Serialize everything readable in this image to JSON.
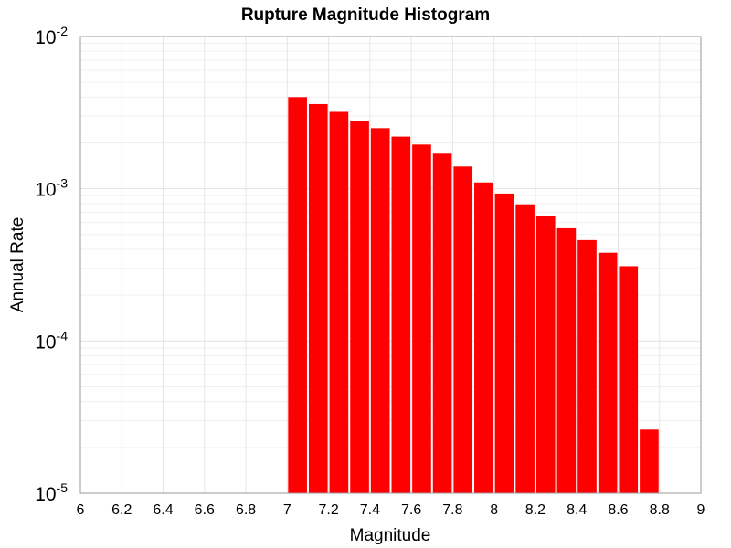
{
  "chart_data": {
    "type": "bar",
    "title": "Rupture Magnitude Histogram",
    "xlabel": "Magnitude",
    "ylabel": "Annual Rate",
    "xlim": [
      6,
      9
    ],
    "ylim": [
      1e-05,
      0.01
    ],
    "yscale": "log",
    "grid": true,
    "bar_color": "#ff0000",
    "bin_width": 0.1,
    "x_ticks": [
      "6",
      "6.2",
      "6.4",
      "6.6",
      "6.8",
      "7",
      "7.2",
      "7.4",
      "7.6",
      "7.8",
      "8",
      "8.2",
      "8.4",
      "8.6",
      "8.8",
      "9"
    ],
    "y_ticks": [
      {
        "base": "10",
        "exp": "-5"
      },
      {
        "base": "10",
        "exp": "-4"
      },
      {
        "base": "10",
        "exp": "-3"
      },
      {
        "base": "10",
        "exp": "-2"
      }
    ],
    "x": [
      7.05,
      7.15,
      7.25,
      7.35,
      7.45,
      7.55,
      7.65,
      7.75,
      7.85,
      7.95,
      8.05,
      8.15,
      8.25,
      8.35,
      8.45,
      8.55,
      8.65,
      8.75
    ],
    "values": [
      0.004,
      0.0036,
      0.0032,
      0.0028,
      0.0025,
      0.0022,
      0.00195,
      0.0017,
      0.0014,
      0.0011,
      0.00093,
      0.00079,
      0.00066,
      0.00055,
      0.00046,
      0.00038,
      0.00031,
      2.62e-05
    ]
  }
}
